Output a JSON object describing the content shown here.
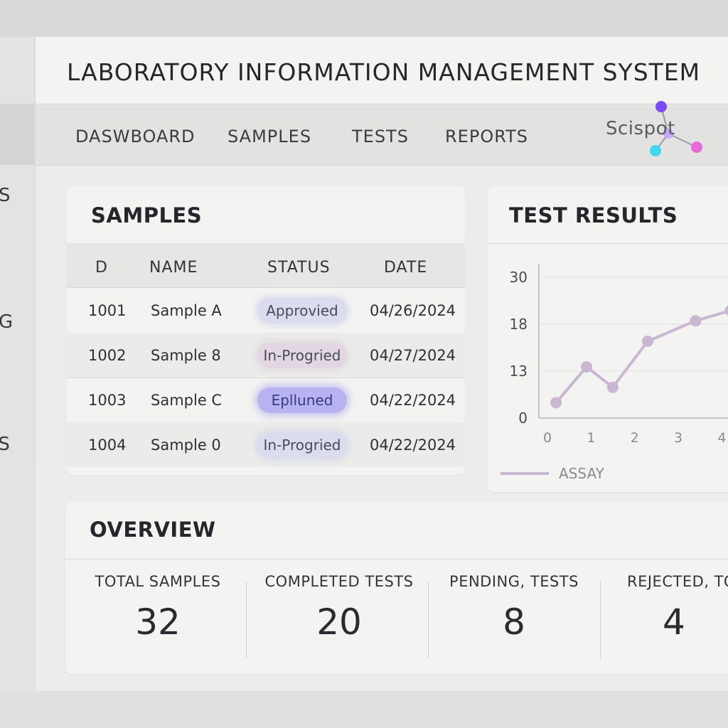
{
  "app": {
    "title": "LABORATORY INFORMATION MANAGEMENT SYSTEM"
  },
  "sidebar": {
    "items": [
      {
        "label": "S"
      },
      {
        "label": "G"
      },
      {
        "label": "MS"
      }
    ]
  },
  "nav": {
    "tabs": [
      {
        "label": "DASWBOARD"
      },
      {
        "label": "SAMPLES"
      },
      {
        "label": "TESTS"
      },
      {
        "label": "REPORTS"
      }
    ]
  },
  "brand": {
    "text": "Scispot",
    "dot_colors": [
      "#7b4bf0",
      "#3fd6f2",
      "#e86ad8",
      "#c9a7f7"
    ]
  },
  "samples": {
    "title": "SAMPLES",
    "columns": [
      "D",
      "NAME",
      "STATUS",
      "DATE"
    ],
    "rows": [
      {
        "id": "1001",
        "name": "Sample A",
        "status": "Approvied",
        "date": "04/26/2024"
      },
      {
        "id": "1002",
        "name": "Sample 8",
        "status": "In-Progried",
        "date": "04/27/2024"
      },
      {
        "id": "1003",
        "name": "Sample C",
        "status": "Eplluned",
        "date": "04/22/2024"
      },
      {
        "id": "1004",
        "name": "Sample 0",
        "status": "In-Progried",
        "date": "04/22/2024"
      }
    ]
  },
  "results": {
    "title": "TEST RESULTS",
    "line_color": "#c9b6d0"
  },
  "chart_data": {
    "type": "line",
    "title": "TEST RESULTS",
    "x_ticks": [
      "0",
      "1",
      "2",
      "3",
      "4"
    ],
    "y_ticks": [
      "30",
      "18",
      "13",
      "0"
    ],
    "series": [
      {
        "name": "ASSAY",
        "x": [
          0.1,
          0.8,
          1.4,
          2.2,
          3.3,
          4.1
        ],
        "y": [
          3,
          10,
          6,
          15,
          19,
          21
        ]
      }
    ],
    "ylim": [
      0,
      30
    ],
    "grid": true,
    "legend": "bottom-left"
  },
  "overview": {
    "title": "OVERVIEW",
    "stats": [
      {
        "label": "TOTAL SAMPLES",
        "value": "32"
      },
      {
        "label": "COMPLETED TESTS",
        "value": "20"
      },
      {
        "label": "PENDING, TESTS",
        "value": "8"
      },
      {
        "label": "REJECTED, TO",
        "value": "4"
      }
    ]
  }
}
